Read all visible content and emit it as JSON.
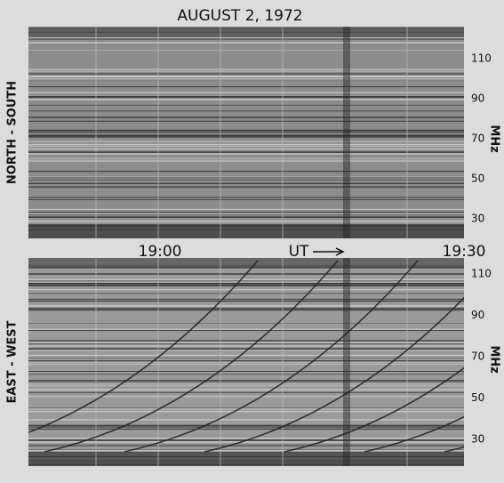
{
  "figure": {
    "title": "AUGUST 2, 1972",
    "panels": [
      {
        "label": "NORTH - SOUTH",
        "axis_label": "MHz",
        "ticks": [
          110,
          90,
          70,
          50,
          30
        ]
      },
      {
        "label": "EAST - WEST",
        "axis_label": "MHz",
        "ticks": [
          110,
          90,
          70,
          50,
          30
        ]
      }
    ],
    "time_labels": [
      "19:00",
      "19:30"
    ],
    "time_axis": "UT"
  }
}
